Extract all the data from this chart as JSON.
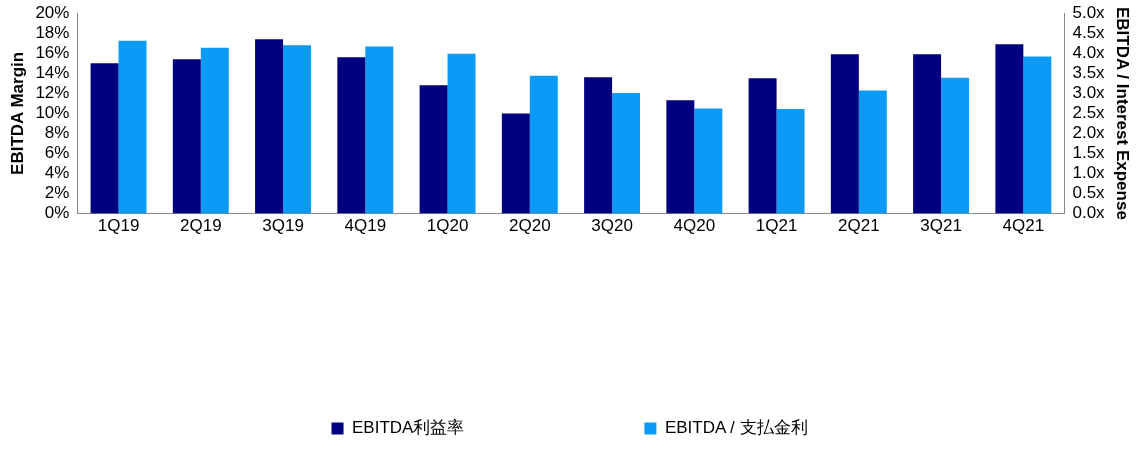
{
  "chart_data": {
    "type": "bar",
    "ylabel": "EBITDA Margin",
    "y2label": "EBITDA / Interest Expense",
    "categories": [
      "1Q19",
      "2Q19",
      "3Q19",
      "4Q19",
      "1Q20",
      "2Q20",
      "3Q20",
      "4Q20",
      "1Q21",
      "2Q21",
      "3Q21",
      "4Q21"
    ],
    "series": [
      {
        "name": "EBITDA利益率",
        "color": "#000080",
        "values": [
          15.0,
          15.4,
          17.4,
          15.6,
          12.8,
          10.0,
          13.6,
          11.3,
          13.5,
          15.9,
          15.9,
          16.9
        ]
      },
      {
        "name": "EBITDA / 支払金利",
        "color": "#0b9af5",
        "axis": "y2",
        "values": [
          4.31,
          4.14,
          4.2,
          4.17,
          3.99,
          3.44,
          3.01,
          2.62,
          2.61,
          3.07,
          3.39,
          3.92
        ]
      }
    ],
    "ylim": [
      0,
      20
    ],
    "yticks": [
      {
        "value": 0,
        "label": "0%"
      },
      {
        "value": 2,
        "label": "2%"
      },
      {
        "value": 4,
        "label": "4%"
      },
      {
        "value": 6,
        "label": "6%"
      },
      {
        "value": 8,
        "label": "8%"
      },
      {
        "value": 10,
        "label": "10%"
      },
      {
        "value": 12,
        "label": "12%"
      },
      {
        "value": 14,
        "label": "14%"
      },
      {
        "value": 16,
        "label": "16%"
      },
      {
        "value": 18,
        "label": "18%"
      },
      {
        "value": 20,
        "label": "20%"
      }
    ],
    "y2lim": [
      0,
      5
    ],
    "y2ticks": [
      {
        "value": 0,
        "label": "0.0x"
      },
      {
        "value": 0.5,
        "label": "0.5x"
      },
      {
        "value": 1,
        "label": "1.0x"
      },
      {
        "value": 1.5,
        "label": "1.5x"
      },
      {
        "value": 2,
        "label": "2.0x"
      },
      {
        "value": 2.5,
        "label": "2.5x"
      },
      {
        "value": 3,
        "label": "3.0x"
      },
      {
        "value": 3.5,
        "label": "3.5x"
      },
      {
        "value": 4,
        "label": "4.0x"
      },
      {
        "value": 4.5,
        "label": "4.5x"
      },
      {
        "value": 5,
        "label": "5.0x"
      }
    ],
    "grid": false,
    "legend": "bottom"
  }
}
